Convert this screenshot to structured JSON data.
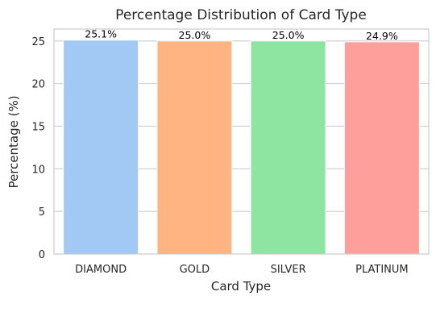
{
  "chart_data": {
    "type": "bar",
    "title": "Percentage Distribution of Card Type",
    "xlabel": "Card Type",
    "ylabel": "Percentage (%)",
    "categories": [
      "DIAMOND",
      "GOLD",
      "SILVER",
      "PLATINUM"
    ],
    "values": [
      25.1,
      25.0,
      25.0,
      24.9
    ],
    "data_labels": [
      "25.1%",
      "25.0%",
      "25.0%",
      "24.9%"
    ],
    "colors": [
      "#a1c9f4",
      "#ffb482",
      "#8de5a1",
      "#ff9f9b"
    ],
    "ylim": [
      0,
      26.4
    ],
    "yticks": [
      0,
      5,
      10,
      15,
      20,
      25
    ],
    "ytick_labels": [
      "0",
      "5",
      "10",
      "15",
      "20",
      "25"
    ],
    "grid": "horizontal"
  }
}
